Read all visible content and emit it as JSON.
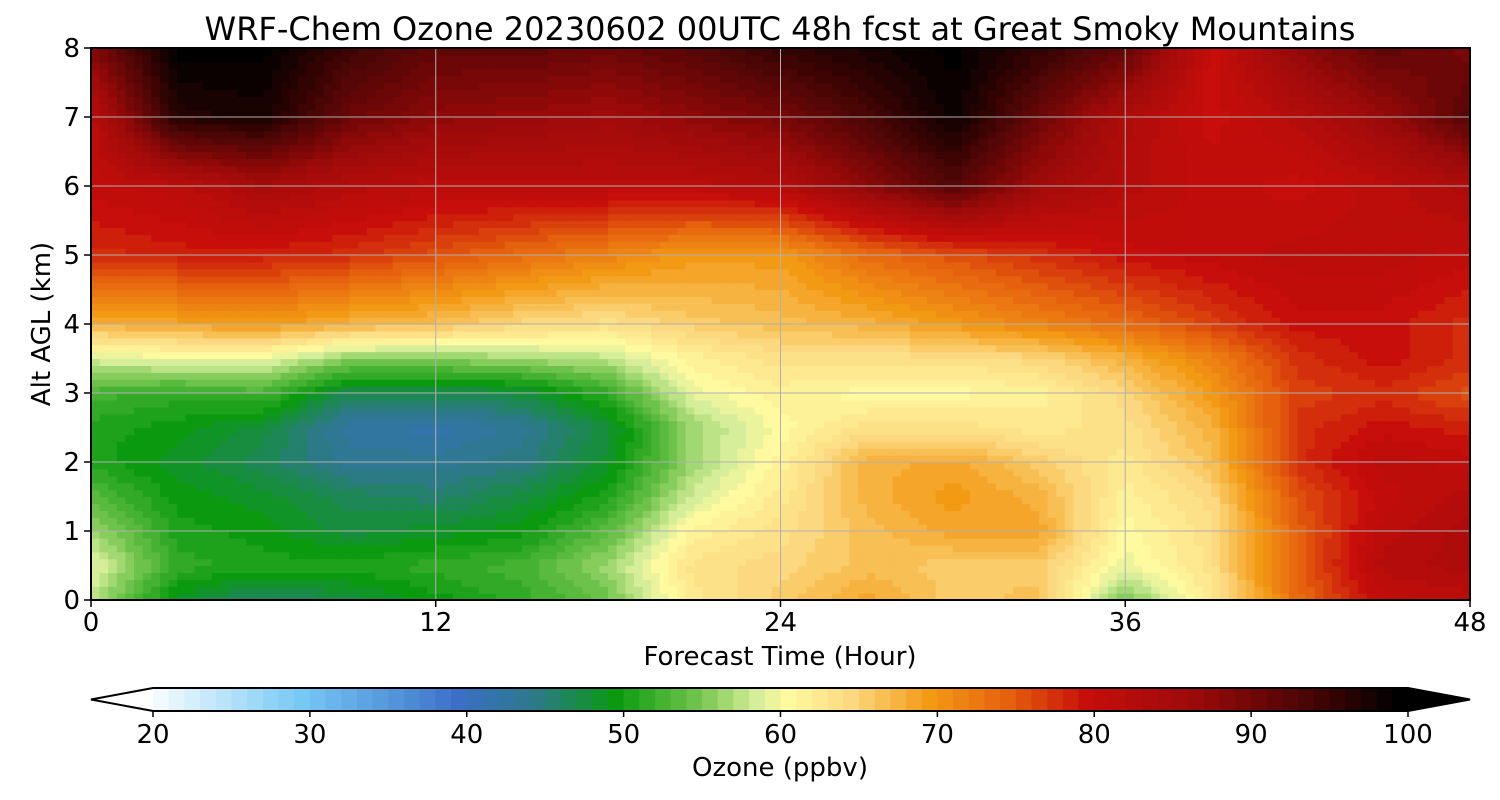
{
  "chart_data": {
    "type": "heatmap",
    "title": "WRF-Chem Ozone  20230602 00UTC 48h fcst at Great Smoky Mountains",
    "xlabel": "Forecast Time (Hour)",
    "ylabel": "Alt AGL (km)",
    "xlim": [
      0,
      48
    ],
    "ylim": [
      0,
      8
    ],
    "x_ticks": [
      "0",
      "12",
      "24",
      "36",
      "48"
    ],
    "y_ticks": [
      "0",
      "1",
      "2",
      "3",
      "4",
      "5",
      "6",
      "7",
      "8"
    ],
    "grid": true,
    "x": [
      0,
      3,
      6,
      9,
      12,
      15,
      18,
      21,
      24,
      27,
      30,
      33,
      36,
      39,
      42,
      45,
      48
    ],
    "y": [
      0,
      0.5,
      1,
      1.5,
      2,
      2.5,
      3,
      3.5,
      4,
      5,
      6,
      7,
      8
    ],
    "values": [
      [
        58,
        49,
        46,
        48,
        50,
        52,
        55,
        63,
        66,
        69,
        66,
        67,
        55,
        63,
        74,
        81,
        82
      ],
      [
        60,
        52,
        51,
        51,
        52,
        53,
        57,
        64,
        65,
        67,
        66,
        66,
        60,
        64,
        75,
        83,
        84
      ],
      [
        57,
        51,
        50,
        48,
        49,
        50,
        54,
        62,
        64,
        67,
        69,
        69,
        61,
        64,
        75,
        82,
        84
      ],
      [
        54,
        50,
        49,
        47,
        46,
        48,
        51,
        59,
        63,
        68,
        70,
        68,
        62,
        65,
        76,
        81,
        83
      ],
      [
        51,
        49,
        47,
        44,
        44,
        45,
        49,
        57,
        62,
        68,
        69,
        66,
        63,
        67,
        78,
        82,
        81
      ],
      [
        51,
        50,
        48,
        43,
        42,
        44,
        48,
        57,
        61,
        64,
        64,
        63,
        64,
        68,
        78,
        80,
        79
      ],
      [
        53,
        52,
        53,
        47,
        47,
        48,
        52,
        60,
        62,
        61,
        61,
        62,
        65,
        70,
        77,
        78,
        76
      ],
      [
        59,
        60,
        60,
        56,
        56,
        57,
        58,
        62,
        64,
        64,
        64,
        65,
        68,
        72,
        78,
        80,
        78
      ],
      [
        68,
        69,
        70,
        68,
        67,
        65,
        64,
        66,
        67,
        68,
        70,
        72,
        74,
        77,
        80,
        80,
        78
      ],
      [
        78,
        79,
        79,
        78,
        76,
        74,
        72,
        70,
        70,
        74,
        76,
        78,
        80,
        81,
        82,
        82,
        81
      ],
      [
        81,
        82,
        85,
        83,
        82,
        82,
        82,
        82,
        83,
        88,
        93,
        86,
        83,
        81,
        80,
        82,
        84
      ],
      [
        82,
        97,
        98,
        91,
        88,
        87,
        86,
        88,
        90,
        94,
        99,
        91,
        84,
        80,
        83,
        87,
        93
      ],
      [
        89,
        100,
        100,
        95,
        92,
        92,
        91,
        93,
        96,
        98,
        100,
        96,
        92,
        80,
        88,
        92,
        90
      ]
    ],
    "colorbar": {
      "label": "Ozone  (ppbv)",
      "vmin": 20,
      "vmax": 100,
      "extend": "both",
      "ticks": [
        "20",
        "30",
        "40",
        "50",
        "60",
        "70",
        "80",
        "90",
        "100"
      ],
      "colormap": [
        [
          20,
          "#ffffff"
        ],
        [
          30,
          "#76c8f5"
        ],
        [
          40,
          "#3b6fc6"
        ],
        [
          45,
          "#2b7a86"
        ],
        [
          50,
          "#0b9a0f"
        ],
        [
          55,
          "#6cc24a"
        ],
        [
          59,
          "#d6ee9a"
        ],
        [
          61,
          "#fffaa0"
        ],
        [
          65,
          "#fcd880"
        ],
        [
          70,
          "#f39a14"
        ],
        [
          75,
          "#e5610e"
        ],
        [
          80,
          "#c80e0a"
        ],
        [
          87,
          "#9a0a0a"
        ],
        [
          94,
          "#4a0505"
        ],
        [
          100,
          "#000000"
        ]
      ],
      "under_color": "#ffffff",
      "over_color": "#000000"
    }
  }
}
